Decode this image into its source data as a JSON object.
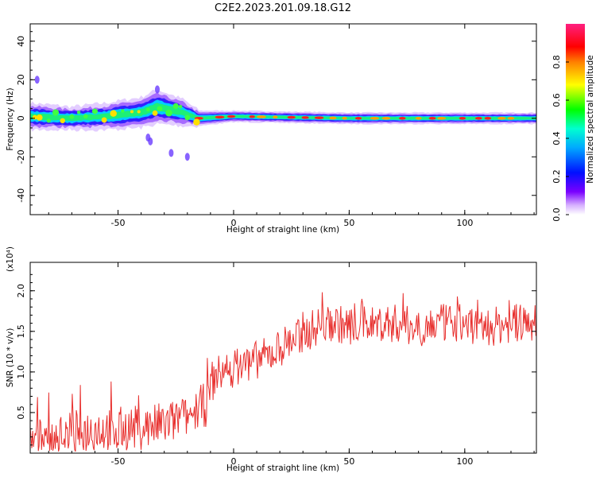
{
  "title": "C2E2.2023.201.09.18.G12",
  "chart_data": [
    {
      "type": "heatmap",
      "xlabel": "Height of straight line (km)",
      "ylabel": "Frequency (Hz)",
      "xlim": [
        -88,
        131
      ],
      "ylim": [
        -50,
        49
      ],
      "xticks": [
        -50,
        0,
        50,
        100
      ],
      "yticks": [
        -40,
        -20,
        0,
        20,
        40
      ],
      "colorbar": {
        "label": "Normalized spectral amplitude",
        "range": [
          0,
          1
        ],
        "ticks": [
          0.0,
          0.2,
          0.4,
          0.6,
          0.8
        ],
        "colormap": [
          "#ffffff",
          "#7a00ff",
          "#0000ff",
          "#00ffff",
          "#00ff00",
          "#ffff00",
          "#ff0000",
          "#ff00ff"
        ]
      },
      "band": [
        {
          "x": -88,
          "center": 1,
          "half_width": 7
        },
        {
          "x": -70,
          "center": 0,
          "half_width": 6
        },
        {
          "x": -55,
          "center": 1,
          "half_width": 7
        },
        {
          "x": -40,
          "center": 3,
          "half_width": 8
        },
        {
          "x": -33,
          "center": 6,
          "half_width": 9
        },
        {
          "x": -22,
          "center": 3,
          "half_width": 7
        },
        {
          "x": -15,
          "center": 0,
          "half_width": 4
        },
        {
          "x": 0,
          "center": 1,
          "half_width": 3
        },
        {
          "x": 50,
          "center": 0,
          "half_width": 3
        },
        {
          "x": 131,
          "center": 0,
          "half_width": 3
        }
      ],
      "scatter_blobs": [
        {
          "x": -36,
          "y": -12
        },
        {
          "x": -37,
          "y": -10
        },
        {
          "x": -27,
          "y": -18
        },
        {
          "x": -20,
          "y": -20
        },
        {
          "x": -85,
          "y": 20
        },
        {
          "x": -33,
          "y": 15
        }
      ]
    },
    {
      "type": "line",
      "xlabel": "Height of straight line (km)",
      "ylabel": "SNR (10 * v/v)",
      "y_multiplier": "(x10⁴)",
      "xlim": [
        -88,
        131
      ],
      "ylim": [
        0,
        2.35
      ],
      "xticks": [
        -50,
        0,
        50,
        100
      ],
      "yticks": [
        0.5,
        1.0,
        1.5,
        2.0
      ],
      "ytick_labels": [
        "0.5",
        "1.0",
        "1.5",
        "2.0"
      ],
      "color": "#e8302e",
      "x": [
        -88,
        -80,
        -70,
        -60,
        -50,
        -40,
        -30,
        -25,
        -20,
        -15,
        -12,
        -8,
        -5,
        0,
        5,
        10,
        15,
        20,
        25,
        30,
        35,
        40,
        45,
        50,
        55,
        60,
        70,
        80,
        90,
        100,
        110,
        120,
        131
      ],
      "y": [
        0.15,
        0.2,
        0.25,
        0.3,
        0.3,
        0.32,
        0.35,
        0.4,
        0.45,
        0.55,
        0.6,
        0.95,
        1.0,
        1.05,
        1.1,
        1.15,
        1.2,
        1.3,
        1.4,
        1.45,
        1.55,
        1.6,
        1.6,
        1.55,
        1.6,
        1.6,
        1.6,
        1.55,
        1.6,
        1.6,
        1.55,
        1.6,
        1.6
      ]
    }
  ]
}
